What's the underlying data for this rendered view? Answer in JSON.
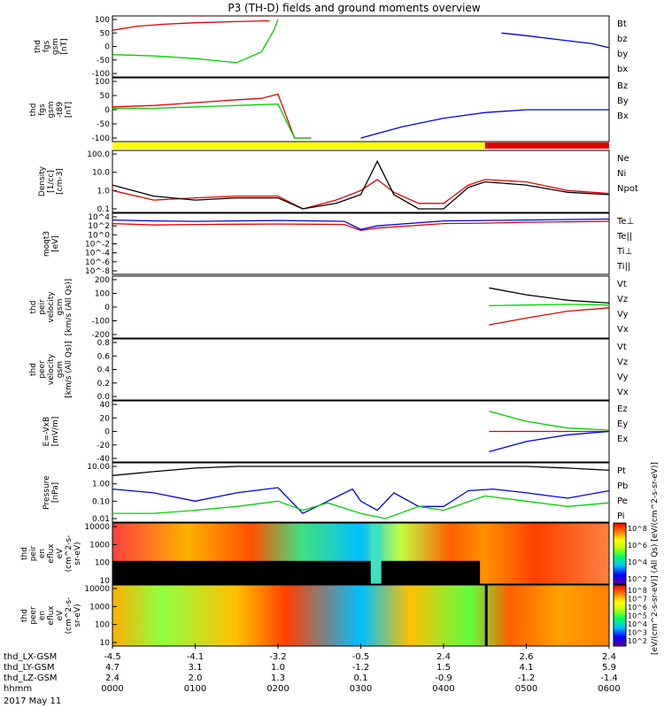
{
  "title": "P3 (TH-D) fields and ground moments overview",
  "date_label": "2017 May 11",
  "colors": {
    "black": "#000000",
    "red": "#e00000",
    "green": "#00d000",
    "blue": "#0000e0",
    "yellow": "#ffff00"
  },
  "panels": [
    {
      "ylabel": [
        "thd",
        "fgs",
        "gsm",
        "[nT]"
      ],
      "ticks": [
        "100",
        "50",
        "0",
        "-50",
        "-100"
      ],
      "legend": [
        {
          "text": "Bt",
          "color": "black"
        },
        {
          "text": "bz",
          "color": "red"
        },
        {
          "text": "by",
          "color": "green"
        },
        {
          "text": "bx",
          "color": "blue"
        }
      ]
    },
    {
      "ylabel": [
        "thd",
        "fgs",
        "gsm",
        "-t89",
        "[nT]"
      ],
      "ticks": [
        "100",
        "50",
        "0",
        "-50",
        "-100"
      ],
      "legend": [
        {
          "text": "Bz",
          "color": "red"
        },
        {
          "text": "By",
          "color": "green"
        },
        {
          "text": "Bx",
          "color": "blue"
        }
      ]
    },
    {
      "ylabel": [
        "Density",
        "[1/cc]",
        "[cm-3]"
      ],
      "ticks": [
        "100.0",
        "10.0",
        "1.0",
        "0.1"
      ],
      "legend": [
        {
          "text": "Ne",
          "color": "red"
        },
        {
          "text": "Ni",
          "color": "black"
        },
        {
          "text": "Npot",
          "color": "blue"
        }
      ]
    },
    {
      "ylabel": [
        "moqt3",
        "[eV]"
      ],
      "ticks": [
        "10^4",
        "10^2",
        "10^0",
        "10^-2",
        "10^-4",
        "10^-6",
        "10^-8"
      ],
      "legend": [
        {
          "text": "Te⊥",
          "color": "red"
        },
        {
          "text": "Te||",
          "color": "black"
        },
        {
          "text": "Ti⊥",
          "color": "blue"
        },
        {
          "text": "Ti||",
          "color": "green"
        }
      ]
    },
    {
      "ylabel": [
        "thd",
        "peir",
        "velocity",
        "gsm",
        "[km/s (All Qs)]"
      ],
      "ticks": [
        "200",
        "100",
        "0",
        "-100",
        "-200"
      ],
      "legend": [
        {
          "text": "Vt",
          "color": "black"
        },
        {
          "text": "Vz",
          "color": "red"
        },
        {
          "text": "Vy",
          "color": "green"
        },
        {
          "text": "Vx",
          "color": "blue"
        }
      ]
    },
    {
      "ylabel": [
        "thd",
        "peer",
        "velocity",
        "gsm",
        "[km/s (All Qs)]"
      ],
      "ticks": [
        "0.8",
        "0.6",
        "0.4",
        "0.2",
        "0.0"
      ],
      "legend": [
        {
          "text": "Vt",
          "color": "black"
        },
        {
          "text": "Vz",
          "color": "red"
        },
        {
          "text": "Vy",
          "color": "green"
        },
        {
          "text": "Vx",
          "color": "blue"
        }
      ]
    },
    {
      "ylabel": [
        "E=-VxB",
        "[mV/m]"
      ],
      "ticks": [
        "40",
        "20",
        "0",
        "-20",
        "-40"
      ],
      "legend": [
        {
          "text": "Ez",
          "color": "red"
        },
        {
          "text": "Ey",
          "color": "green"
        },
        {
          "text": "Ex",
          "color": "blue"
        }
      ]
    },
    {
      "ylabel": [
        "Pressure",
        "[nPa]"
      ],
      "ticks": [
        "10.00",
        "1.00",
        "0.10",
        "0.01"
      ],
      "legend": [
        {
          "text": "Pt",
          "color": "black"
        },
        {
          "text": "Pb",
          "color": "red"
        },
        {
          "text": "Pe",
          "color": "green"
        },
        {
          "text": "Pi",
          "color": "blue"
        }
      ]
    },
    {
      "ylabel": [
        "thd",
        "peir",
        "en",
        "eflux",
        "eV",
        "(cm^2-s-",
        "sr-eV)"
      ],
      "ticks": [
        "10000",
        "1000",
        "100",
        "10"
      ],
      "legend": []
    },
    {
      "ylabel": [
        "thd",
        "peer",
        "en",
        "eflux",
        "eV",
        "(cm^2-s-",
        "sr-eV)"
      ],
      "ticks": [
        "10000",
        "1000",
        "100",
        "10"
      ],
      "legend": []
    }
  ],
  "colorbars": [
    {
      "ticks": [
        "10^8",
        "10^6",
        "10^4",
        "10^2"
      ]
    },
    {
      "ticks": [
        "10^8",
        "10^7",
        "10^6",
        "10^5",
        "10^4",
        "10^3",
        "10^2"
      ]
    }
  ],
  "colorbar_label": "[eV/(cm^2-s-sr-eV)] (All Qs) [eV/(cm^2-s-sr-eV)]",
  "xaxis": {
    "rows": [
      {
        "label": "thd_LX-GSM",
        "values": [
          "-4.5",
          "-4.1",
          "-3.2",
          "-0.5",
          "2.4",
          "2.6",
          "2.4"
        ]
      },
      {
        "label": "thd_LY-GSM",
        "values": [
          "4.7",
          "3.1",
          "1.0",
          "-1.2",
          "1.5",
          "4.1",
          "5.9"
        ]
      },
      {
        "label": "thd_LZ-GSM",
        "values": [
          "2.4",
          "2.0",
          "1.3",
          "0.1",
          "-0.9",
          "-1.2",
          "-1.4"
        ]
      },
      {
        "label": "hhmm",
        "values": [
          "0000",
          "0100",
          "0200",
          "0300",
          "0400",
          "0500",
          "0600"
        ]
      }
    ]
  },
  "chart_data": {
    "type": "line",
    "title": "P3 (TH-D) fields and ground moments overview",
    "x_label": "hhmm",
    "x_ticks": [
      "0000",
      "0100",
      "0200",
      "0300",
      "0400",
      "0500",
      "0600"
    ],
    "xlim_hours": [
      0,
      6
    ],
    "series": [
      {
        "name": "by",
        "panel": 0,
        "color": "green",
        "x": [
          0.0,
          0.5,
          1.0,
          1.5,
          1.8,
          1.95,
          2.0
        ],
        "y": [
          -30,
          -35,
          -45,
          -60,
          -20,
          60,
          100
        ]
      },
      {
        "name": "bz",
        "panel": 0,
        "color": "red",
        "x": [
          0.0,
          0.3,
          0.6,
          1.0,
          1.5,
          1.9
        ],
        "y": [
          60,
          75,
          82,
          88,
          92,
          95
        ]
      },
      {
        "name": "bx",
        "panel": 0,
        "color": "blue",
        "x": [
          4.7,
          5.0,
          5.4,
          5.8,
          6.0
        ],
        "y": [
          50,
          40,
          25,
          10,
          -5
        ]
      },
      {
        "name": "Bz",
        "panel": 1,
        "color": "red",
        "x": [
          0.0,
          0.5,
          1.0,
          1.5,
          1.8,
          2.0,
          2.2,
          2.4
        ],
        "y": [
          10,
          15,
          25,
          35,
          40,
          55,
          -100,
          -100
        ]
      },
      {
        "name": "By",
        "panel": 1,
        "color": "green",
        "x": [
          0.0,
          0.5,
          1.0,
          1.5,
          2.0,
          2.2,
          2.4
        ],
        "y": [
          5,
          5,
          10,
          15,
          20,
          -100,
          -100
        ]
      },
      {
        "name": "Bx",
        "panel": 1,
        "color": "blue",
        "x": [
          3.0,
          3.5,
          4.0,
          4.5,
          5.0,
          5.5,
          6.0
        ],
        "y": [
          -100,
          -60,
          -30,
          -10,
          0,
          0,
          0
        ]
      },
      {
        "name": "Ne",
        "panel": 2,
        "color": "red",
        "x": [
          0.0,
          0.5,
          1.0,
          1.5,
          2.0,
          2.3,
          2.7,
          3.0,
          3.2,
          3.4,
          3.7,
          4.0,
          4.3,
          4.5,
          5.0,
          5.5,
          6.0
        ],
        "y": [
          1.0,
          0.3,
          0.4,
          0.5,
          0.5,
          0.1,
          0.3,
          1.0,
          4.0,
          0.8,
          0.2,
          0.2,
          2.0,
          4.0,
          3.0,
          1.0,
          0.7
        ]
      },
      {
        "name": "Ni",
        "panel": 2,
        "color": "black",
        "x": [
          0.0,
          0.5,
          1.0,
          1.5,
          2.0,
          2.3,
          2.7,
          3.0,
          3.2,
          3.4,
          3.7,
          4.0,
          4.3,
          4.5,
          5.0,
          5.5,
          6.0
        ],
        "y": [
          2.0,
          0.5,
          0.3,
          0.4,
          0.4,
          0.08,
          0.2,
          0.6,
          40.0,
          0.6,
          0.1,
          0.1,
          1.5,
          3.0,
          2.0,
          0.8,
          0.6
        ]
      },
      {
        "name": "Te⊥",
        "panel": 3,
        "color": "red",
        "x": [
          0.0,
          0.5,
          1.0,
          2.0,
          2.8,
          3.0,
          3.2,
          4.0,
          4.5,
          5.0,
          6.0
        ],
        "y": [
          2.5,
          2.2,
          2.3,
          2.4,
          2.3,
          1.0,
          1.5,
          2.5,
          2.6,
          2.8,
          3.0
        ]
      },
      {
        "name": "Ti⊥",
        "panel": 3,
        "color": "blue",
        "x": [
          0.0,
          0.5,
          1.0,
          2.0,
          2.8,
          3.0,
          3.2,
          4.0,
          4.5,
          5.0,
          6.0
        ],
        "y": [
          3.3,
          3.1,
          3.0,
          3.2,
          3.0,
          1.2,
          2.0,
          3.1,
          3.2,
          3.3,
          3.5
        ]
      },
      {
        "name": "Vt",
        "panel": 4,
        "color": "black",
        "x": [
          4.55,
          5.0,
          5.5,
          6.0
        ],
        "y": [
          140,
          90,
          50,
          30
        ]
      },
      {
        "name": "Vy",
        "panel": 4,
        "color": "green",
        "x": [
          4.55,
          5.0,
          5.5,
          6.0
        ],
        "y": [
          10,
          15,
          20,
          15
        ]
      },
      {
        "name": "Vz",
        "panel": 4,
        "color": "red",
        "x": [
          4.55,
          5.0,
          5.5,
          6.0
        ],
        "y": [
          -130,
          -80,
          -30,
          -5
        ]
      },
      {
        "name": "Ey",
        "panel": 6,
        "color": "green",
        "x": [
          4.55,
          5.0,
          5.5,
          6.0
        ],
        "y": [
          30,
          15,
          5,
          2
        ]
      },
      {
        "name": "Ez",
        "panel": 6,
        "color": "red",
        "x": [
          4.55,
          5.0,
          5.5,
          6.0
        ],
        "y": [
          0,
          0,
          0,
          0
        ]
      },
      {
        "name": "Ex",
        "panel": 6,
        "color": "blue",
        "x": [
          4.55,
          5.0,
          5.5,
          6.0
        ],
        "y": [
          -30,
          -15,
          -5,
          0
        ]
      },
      {
        "name": "Pt",
        "panel": 7,
        "color": "black",
        "x": [
          0.0,
          0.5,
          1.0,
          1.5,
          2.0,
          2.5,
          3.0,
          3.5,
          4.0,
          4.5,
          5.0,
          5.5,
          6.0
        ],
        "y": [
          3,
          5,
          8,
          10,
          10,
          10,
          10,
          10,
          10,
          10,
          10,
          8,
          6
        ]
      },
      {
        "name": "Pi",
        "panel": 7,
        "color": "blue",
        "x": [
          0.0,
          0.5,
          1.0,
          1.5,
          2.0,
          2.3,
          2.6,
          2.9,
          3.0,
          3.2,
          3.4,
          3.7,
          4.0,
          4.3,
          4.6,
          5.0,
          5.5,
          6.0
        ],
        "y": [
          0.5,
          0.3,
          0.1,
          0.3,
          0.6,
          0.02,
          0.1,
          0.5,
          0.1,
          0.03,
          0.3,
          0.05,
          0.05,
          0.4,
          0.5,
          0.3,
          0.15,
          0.4
        ]
      },
      {
        "name": "Pe",
        "panel": 7,
        "color": "green",
        "x": [
          0.0,
          0.5,
          1.0,
          1.5,
          2.0,
          2.3,
          2.6,
          3.0,
          3.3,
          3.7,
          4.0,
          4.5,
          5.0,
          5.5,
          6.0
        ],
        "y": [
          0.02,
          0.02,
          0.03,
          0.05,
          0.1,
          0.03,
          0.08,
          0.02,
          0.01,
          0.05,
          0.03,
          0.2,
          0.1,
          0.05,
          0.08
        ]
      }
    ]
  }
}
